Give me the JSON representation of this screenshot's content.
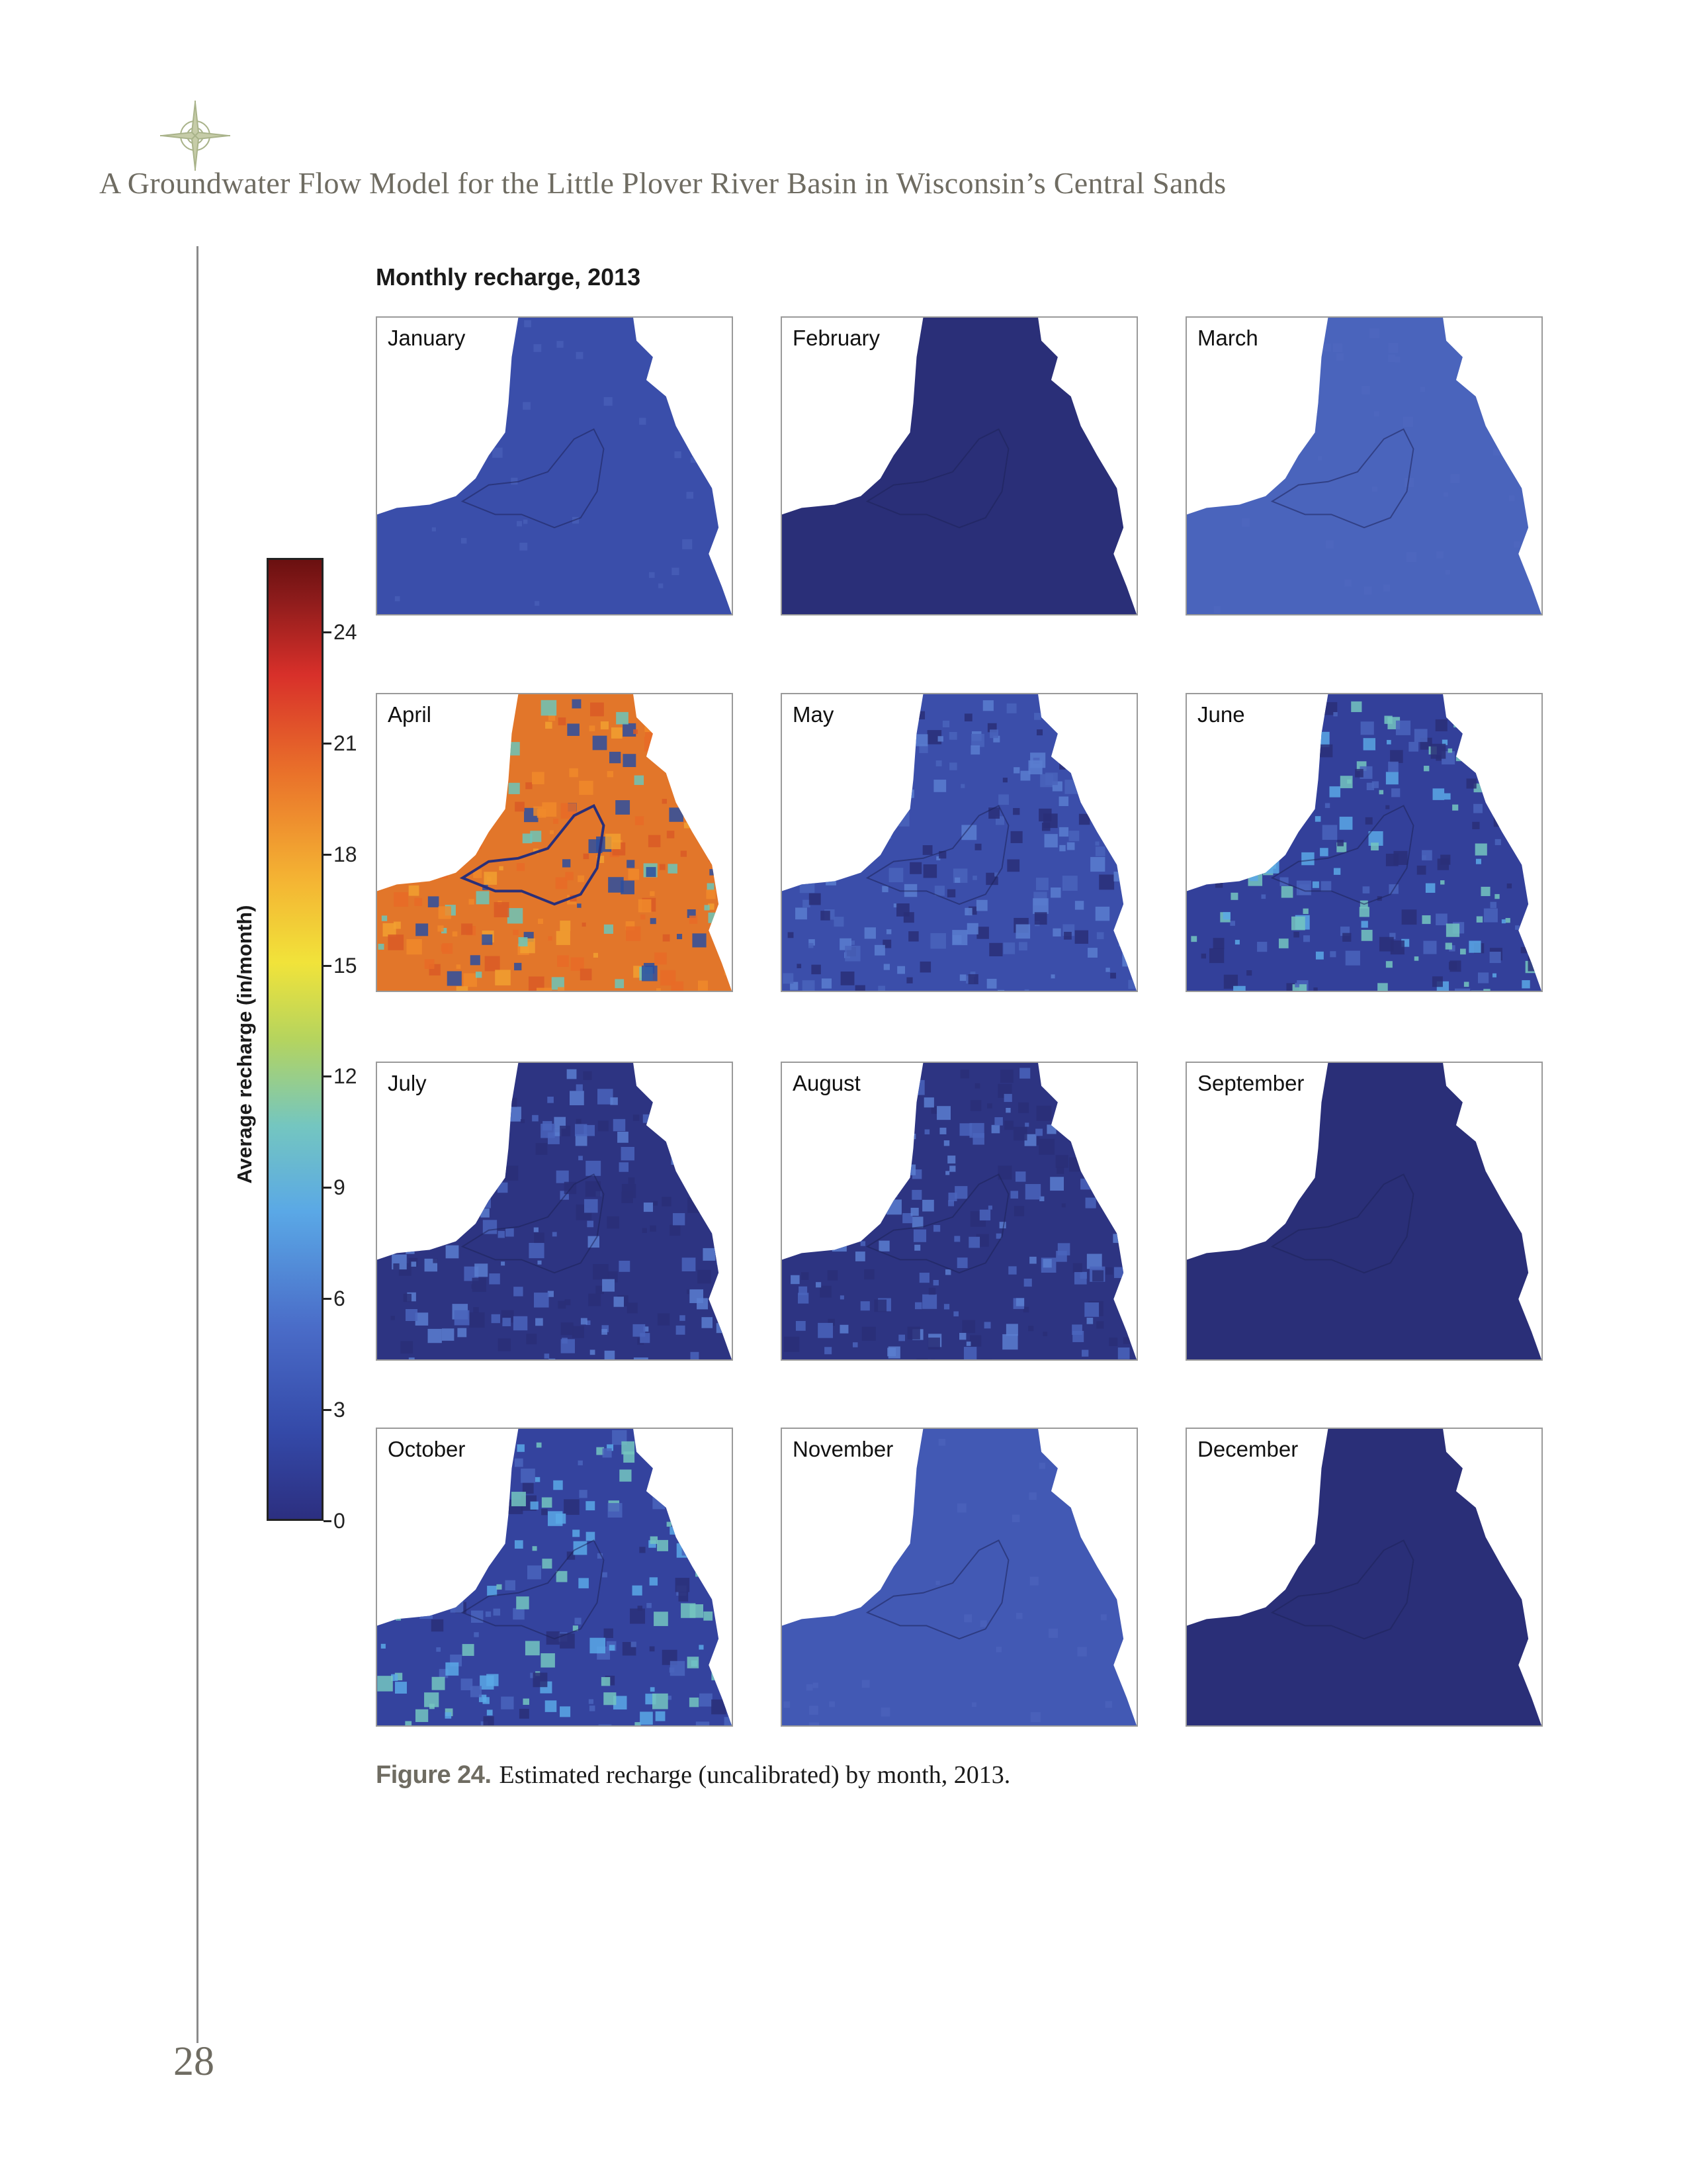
{
  "header": {
    "title": "A Groundwater Flow Model for the Little Plover River Basin in Wisconsin’s Central Sands"
  },
  "figure": {
    "heading": "Monthly recharge, 2013",
    "caption_number": "Figure 24.",
    "caption_text": "Estimated recharge (uncalibrated) by month, 2013."
  },
  "colorbar": {
    "title": "Average recharge (in/month)",
    "ticks": [
      "0",
      "3",
      "6",
      "9",
      "12",
      "15",
      "18",
      "21",
      "24"
    ],
    "min": 0,
    "max": 26
  },
  "panels": [
    {
      "label": "January",
      "fill": "#3a4eaa",
      "texture": "smooth"
    },
    {
      "label": "February",
      "fill": "#2a2f78",
      "texture": "none"
    },
    {
      "label": "March",
      "fill": "#4a64bc",
      "texture": "smooth"
    },
    {
      "label": "April",
      "fill": "#e2762a",
      "texture": "hot"
    },
    {
      "label": "May",
      "fill": "#3b4eaa",
      "texture": "patchy"
    },
    {
      "label": "June",
      "fill": "#33409a",
      "texture": "patchy-bright"
    },
    {
      "label": "July",
      "fill": "#2d3482",
      "texture": "patchy"
    },
    {
      "label": "August",
      "fill": "#2d3482",
      "texture": "patchy"
    },
    {
      "label": "September",
      "fill": "#2a2f78",
      "texture": "none"
    },
    {
      "label": "October",
      "fill": "#34439e",
      "texture": "patchy-bright"
    },
    {
      "label": "November",
      "fill": "#4259b4",
      "texture": "smooth"
    },
    {
      "label": "December",
      "fill": "#2a2f78",
      "texture": "none"
    }
  ],
  "page_number": "28",
  "colors": {
    "header_text": "#6f6c62",
    "compass": "#a9b38a"
  }
}
